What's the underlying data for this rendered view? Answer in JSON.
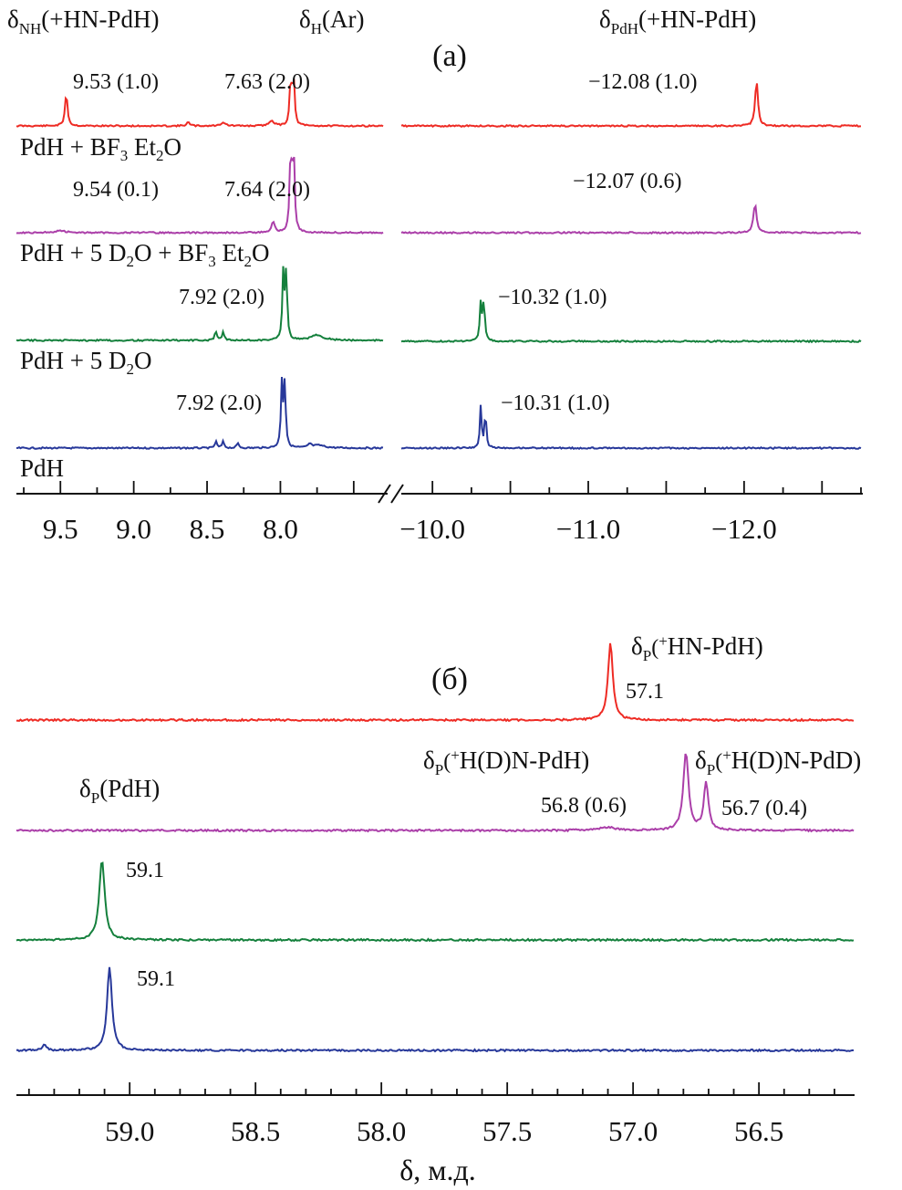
{
  "colors": {
    "red": "#ee2b24",
    "magenta": "#ab3fa9",
    "green": "#14803c",
    "blue": "#27389a"
  },
  "chart_data": [
    {
      "panel": "(а)",
      "type": "line",
      "title": "(а)",
      "x_left_segment": {
        "xlim": [
          9.8,
          7.3
        ],
        "ticks": [
          9.5,
          9.0,
          8.5,
          8.0
        ],
        "tick_labels": [
          "9.5",
          "9.0",
          "8.5",
          "8.0"
        ]
      },
      "x_right_segment": {
        "xlim": [
          -9.8,
          -12.75
        ],
        "ticks": [
          -10.0,
          -11.0,
          -12.0
        ],
        "tick_labels": [
          "−10.0",
          "−11.0",
          "−12.0"
        ]
      },
      "region_labels": {
        "nh": {
          "base": "δ",
          "sub": "NH",
          "rest": "(+HN-PdH)"
        },
        "ar": {
          "base": "δ",
          "sub": "H",
          "rest": "(Ar)"
        },
        "pdh": {
          "base": "δ",
          "sub": "PdH",
          "rest": "(+HN-PdH)"
        }
      },
      "series": [
        {
          "name": "PdH + BF3 Et2O",
          "color": "#ee2b24",
          "label_parts": [
            "PdH + BF",
            "3",
            " Et",
            "2",
            "O"
          ],
          "peaks_ppm": [
            9.46,
            8.39,
            7.93,
            7.91,
            8.63,
            8.06,
            -12.08
          ],
          "annotations": [
            "9.53 (1.0)",
            "7.63 (2.0)",
            "−12.08 (1.0)"
          ]
        },
        {
          "name": "PdH + 5 D2O + BF3 Et2O",
          "color": "#ab3fa9",
          "label_parts": [
            "PdH + 5 D",
            "2",
            "O + BF",
            "3",
            " Et",
            "2",
            "O"
          ],
          "peaks_ppm": [
            7.93,
            7.91,
            8.05,
            -12.07
          ],
          "annotations": [
            "9.54 (0.1)",
            "7.64 (2.0)",
            "−12.07 (0.6)"
          ]
        },
        {
          "name": "PdH + 5 D2O",
          "color": "#14803c",
          "label_parts": [
            "PdH + 5 D",
            "2",
            "O"
          ],
          "peaks_ppm": [
            8.44,
            8.39,
            7.98,
            7.96,
            7.75,
            -10.34,
            -10.32
          ],
          "annotations": [
            "7.92 (2.0)",
            "−10.32 (1.0)"
          ]
        },
        {
          "name": "PdH",
          "color": "#27389a",
          "label_parts": [
            "PdH"
          ],
          "peaks_ppm": [
            8.44,
            8.39,
            8.29,
            7.99,
            7.97,
            7.8,
            -10.31,
            -10.33
          ],
          "annotations": [
            "7.92 (2.0)",
            "−10.31 (1.0)"
          ]
        }
      ]
    },
    {
      "panel": "(б)",
      "type": "line",
      "title": "(б)",
      "xlabel": "δ, м.д.",
      "xlim": [
        59.45,
        56.12
      ],
      "ticks": [
        59.0,
        58.5,
        58.0,
        57.5,
        57.0,
        56.5
      ],
      "tick_labels": [
        "59.0",
        "58.5",
        "58.0",
        "57.5",
        "57.0",
        "56.5"
      ],
      "series": [
        {
          "name": "PdH + BF3 Et2O",
          "color": "#ee2b24",
          "peaks_ppm": [
            57.1
          ],
          "annotations": [
            "57.1"
          ],
          "peak_label": {
            "base": "δ",
            "sub": "P",
            "sup": "+",
            "rest": "HN-PdH)"
          }
        },
        {
          "name": "PdH + 5 D2O + BF3 Et2O",
          "color": "#ab3fa9",
          "peaks_ppm": [
            56.8,
            56.7
          ],
          "annotations": [
            "56.8 (0.6)",
            "56.7 (0.4)"
          ],
          "peak_labels": [
            {
              "base": "δ",
              "sub": "P",
              "sup": "+",
              "rest": "H(D)N-PdH)"
            },
            {
              "base": "δ",
              "sub": "P",
              "sup": "+",
              "rest": "H(D)N-PdD)"
            }
          ]
        },
        {
          "name": "PdH + 5 D2O",
          "color": "#14803c",
          "peaks_ppm": [
            59.1
          ],
          "annotations": [
            "59.1"
          ],
          "peak_label": {
            "base": "δ",
            "sub": "P",
            "rest": "(PdH)"
          }
        },
        {
          "name": "PdH",
          "color": "#27389a",
          "peaks_ppm": [
            59.1
          ],
          "annotations": [
            "59.1"
          ]
        }
      ]
    }
  ]
}
